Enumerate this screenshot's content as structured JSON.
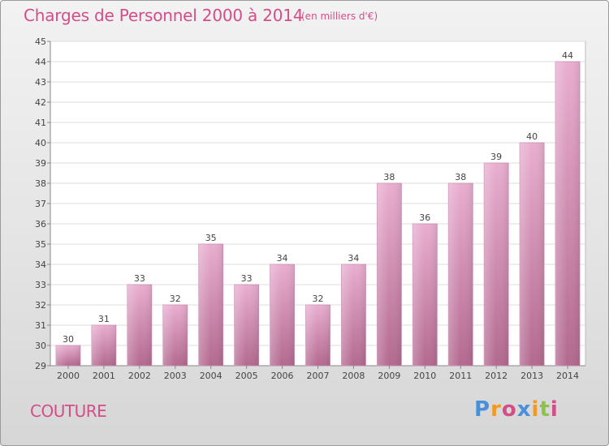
{
  "header": {
    "title": "Charges de Personnel 2000 à 2014",
    "subtitle": "(en milliers d'€)"
  },
  "footer": {
    "place": "COUTURE",
    "logo": "Proxiti"
  },
  "colors": {
    "title": "#d44d88",
    "bar_light": "#e7a9cb",
    "bar_dark": "#b66d94",
    "logo": [
      "#4a90d9",
      "#f29a1f",
      "#d44d88",
      "#4a90d9",
      "#f29a1f",
      "#8bc34a",
      "#d44d88"
    ]
  },
  "chart_data": {
    "type": "bar",
    "categories": [
      "2000",
      "2001",
      "2002",
      "2003",
      "2004",
      "2005",
      "2006",
      "2007",
      "2008",
      "2009",
      "2010",
      "2011",
      "2012",
      "2013",
      "2014"
    ],
    "values": [
      30,
      31,
      33,
      32,
      35,
      33,
      34,
      32,
      34,
      38,
      36,
      38,
      39,
      40,
      44
    ],
    "title": "Charges de Personnel 2000 à 2014",
    "subtitle": "(en milliers d'€)",
    "ylim": [
      29,
      45
    ],
    "yticks": [
      29,
      30,
      31,
      32,
      33,
      34,
      35,
      36,
      37,
      38,
      39,
      40,
      41,
      42,
      43,
      44,
      45
    ],
    "grid": true,
    "data_labels": true
  }
}
